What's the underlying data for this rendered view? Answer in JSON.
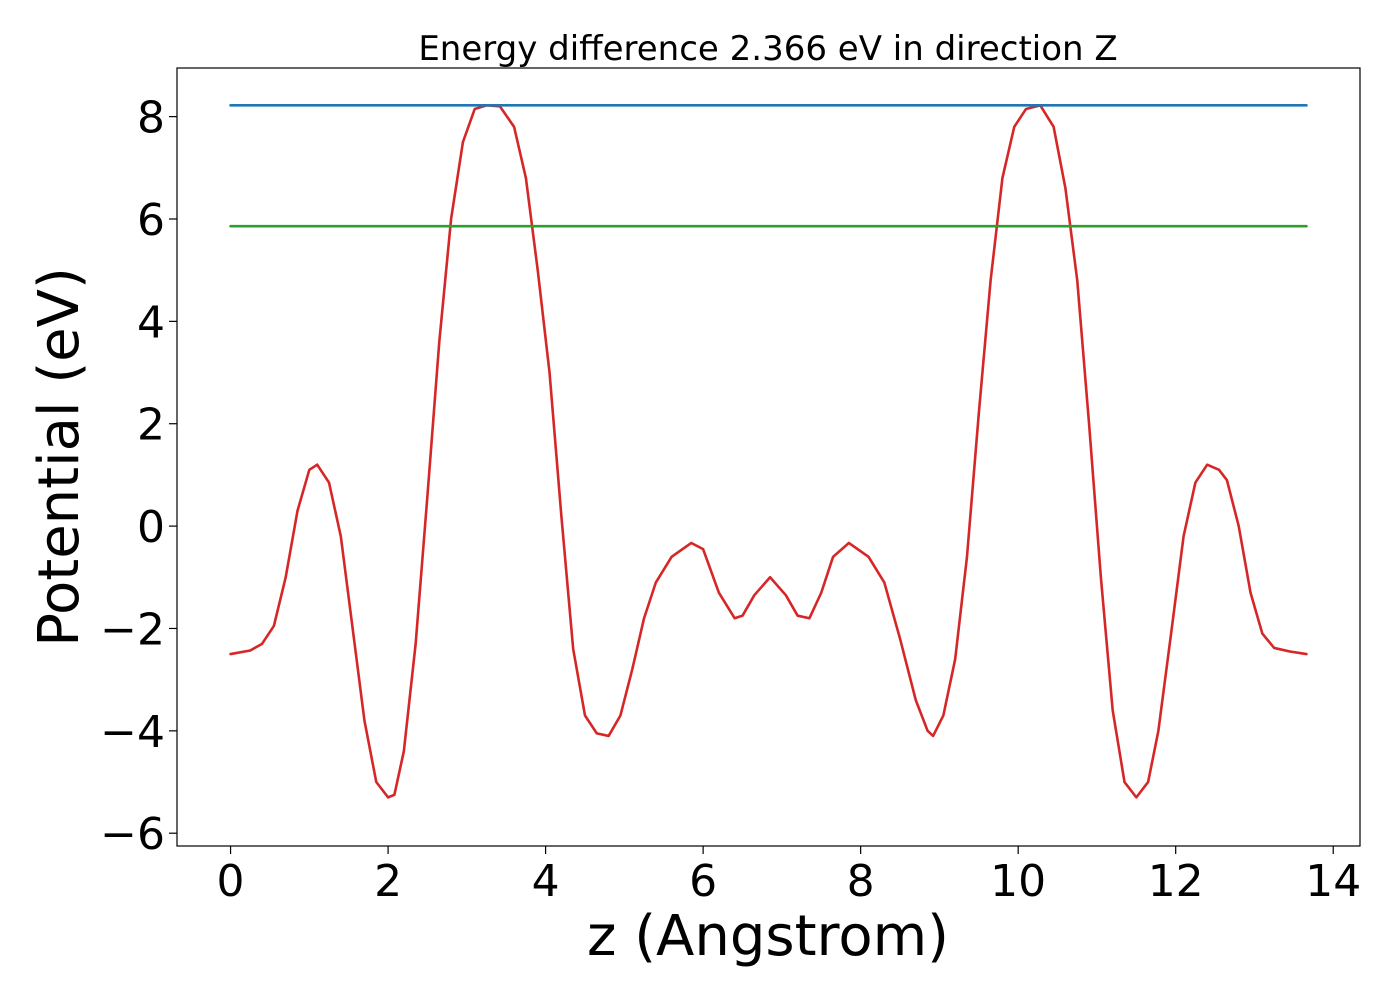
{
  "chart_data": {
    "type": "line",
    "title": "Energy difference 2.366 eV in direction Z",
    "xlabel": "z (Angstrom)",
    "ylabel": "Potential (eV)",
    "xlim": [
      -0.68,
      14.34
    ],
    "ylim": [
      -6.25,
      8.95
    ],
    "xticks": [
      0,
      2,
      4,
      6,
      8,
      10,
      12,
      14
    ],
    "xtick_labels": [
      "0",
      "2",
      "4",
      "6",
      "8",
      "10",
      "12",
      "14"
    ],
    "yticks": [
      -6,
      -4,
      -2,
      0,
      2,
      4,
      6,
      8
    ],
    "ytick_labels": [
      "−6",
      "−4",
      "−2",
      "0",
      "2",
      "4",
      "6",
      "8"
    ],
    "grid": false,
    "series": [
      {
        "color": "#d62728",
        "x": [
          0.0,
          0.25,
          0.4,
          0.55,
          0.7,
          0.85,
          1.0,
          1.1,
          1.25,
          1.4,
          1.55,
          1.7,
          1.85,
          2.0,
          2.08,
          2.2,
          2.35,
          2.5,
          2.65,
          2.8,
          2.95,
          3.1,
          3.25,
          3.42,
          3.6,
          3.75,
          3.9,
          4.05,
          4.2,
          4.35,
          4.5,
          4.65,
          4.8,
          4.95,
          5.1,
          5.25,
          5.4,
          5.6,
          5.85,
          6.0,
          6.2,
          6.4,
          6.5,
          6.65,
          6.85,
          7.05,
          7.2,
          7.35,
          7.5,
          7.65,
          7.85,
          8.1,
          8.3,
          8.5,
          8.7,
          8.85,
          8.92,
          9.05,
          9.2,
          9.35,
          9.5,
          9.65,
          9.8,
          9.95,
          10.1,
          10.28,
          10.45,
          10.6,
          10.75,
          10.9,
          11.05,
          11.2,
          11.35,
          11.5,
          11.65,
          11.78,
          11.95,
          12.1,
          12.25,
          12.4,
          12.55,
          12.65,
          12.8,
          12.95,
          13.1,
          13.25,
          13.45,
          13.66
        ],
        "y": [
          -2.5,
          -2.43,
          -2.3,
          -1.95,
          -1.0,
          0.3,
          1.1,
          1.2,
          0.85,
          -0.2,
          -2.0,
          -3.8,
          -5.0,
          -5.3,
          -5.25,
          -4.4,
          -2.3,
          0.6,
          3.6,
          6.0,
          7.5,
          8.15,
          8.22,
          8.2,
          7.8,
          6.8,
          5.0,
          3.0,
          0.2,
          -2.4,
          -3.7,
          -4.05,
          -4.1,
          -3.7,
          -2.8,
          -1.8,
          -1.1,
          -0.6,
          -0.33,
          -0.45,
          -1.3,
          -1.8,
          -1.75,
          -1.35,
          -1.0,
          -1.35,
          -1.75,
          -1.8,
          -1.3,
          -0.6,
          -0.33,
          -0.6,
          -1.1,
          -2.2,
          -3.4,
          -4.0,
          -4.1,
          -3.7,
          -2.6,
          -0.6,
          2.2,
          4.8,
          6.8,
          7.8,
          8.15,
          8.22,
          7.8,
          6.6,
          4.8,
          2.0,
          -1.0,
          -3.6,
          -5.0,
          -5.3,
          -5.0,
          -4.0,
          -2.0,
          -0.2,
          0.85,
          1.2,
          1.1,
          0.9,
          0.0,
          -1.3,
          -2.1,
          -2.38,
          -2.45,
          -2.5
        ]
      },
      {
        "color": "#1f77b4",
        "x": [
          0.0,
          13.66
        ],
        "y": [
          8.22,
          8.22
        ]
      },
      {
        "color": "#2ca02c",
        "x": [
          0.0,
          13.66
        ],
        "y": [
          5.86,
          5.86
        ]
      }
    ]
  }
}
